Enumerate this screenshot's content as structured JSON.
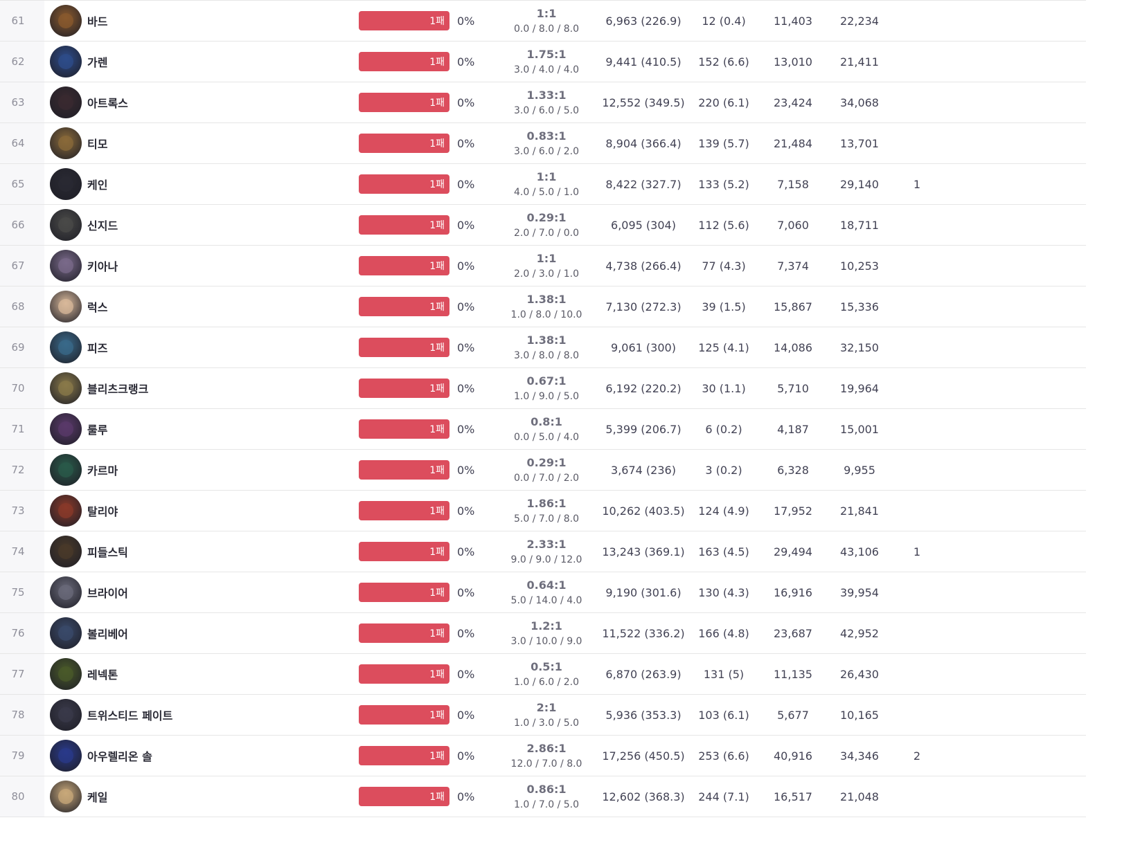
{
  "colors": {
    "loss_bar": "#dc4d5d",
    "rank_bg": "#f7f7f9",
    "divider": "#e6e6e6"
  },
  "rows": [
    {
      "rank": "61",
      "name": "바드",
      "loss": "1패",
      "winrate": "0%",
      "kda_ratio": "1:1",
      "kda": "0.0 / 8.0  / 8.0",
      "damage": "6,963 (226.9)",
      "cs": "12 (0.4)",
      "gold": "11,403",
      "dealt": "22,234",
      "extra": "",
      "avatar_icon": "champion-portrait",
      "avatar_color": "#8a5a2e"
    },
    {
      "rank": "62",
      "name": "가렌",
      "loss": "1패",
      "winrate": "0%",
      "kda_ratio": "1.75:1",
      "kda": "3.0 / 4.0  / 4.0",
      "damage": "9,441 (410.5)",
      "cs": "152 (6.6)",
      "gold": "13,010",
      "dealt": "21,411",
      "extra": "",
      "avatar_icon": "champion-portrait",
      "avatar_color": "#2e4c8a"
    },
    {
      "rank": "63",
      "name": "아트록스",
      "loss": "1패",
      "winrate": "0%",
      "kda_ratio": "1.33:1",
      "kda": "3.0 / 6.0  / 5.0",
      "damage": "12,552 (349.5)",
      "cs": "220 (6.1)",
      "gold": "23,424",
      "dealt": "34,068",
      "extra": "",
      "avatar_icon": "champion-portrait",
      "avatar_color": "#3a2a30"
    },
    {
      "rank": "64",
      "name": "티모",
      "loss": "1패",
      "winrate": "0%",
      "kda_ratio": "0.83:1",
      "kda": "3.0 / 6.0  / 2.0",
      "damage": "8,904 (366.4)",
      "cs": "139 (5.7)",
      "gold": "21,484",
      "dealt": "13,701",
      "extra": "",
      "avatar_icon": "champion-portrait",
      "avatar_color": "#8a6a3a"
    },
    {
      "rank": "65",
      "name": "케인",
      "loss": "1패",
      "winrate": "0%",
      "kda_ratio": "1:1",
      "kda": "4.0 / 5.0  / 1.0",
      "damage": "8,422 (327.7)",
      "cs": "133 (5.2)",
      "gold": "7,158",
      "dealt": "29,140",
      "extra": "1",
      "avatar_icon": "champion-portrait",
      "avatar_color": "#2a2a33"
    },
    {
      "rank": "66",
      "name": "신지드",
      "loss": "1패",
      "winrate": "0%",
      "kda_ratio": "0.29:1",
      "kda": "2.0 / 7.0  / 0.0",
      "damage": "6,095 (304)",
      "cs": "112 (5.6)",
      "gold": "7,060",
      "dealt": "18,711",
      "extra": "",
      "avatar_icon": "champion-portrait",
      "avatar_color": "#4a4a48"
    },
    {
      "rank": "67",
      "name": "키아나",
      "loss": "1패",
      "winrate": "0%",
      "kda_ratio": "1:1",
      "kda": "2.0 / 3.0  / 1.0",
      "damage": "4,738 (266.4)",
      "cs": "77 (4.3)",
      "gold": "7,374",
      "dealt": "10,253",
      "extra": "",
      "avatar_icon": "champion-portrait",
      "avatar_color": "#7a6a8a"
    },
    {
      "rank": "68",
      "name": "럭스",
      "loss": "1패",
      "winrate": "0%",
      "kda_ratio": "1.38:1",
      "kda": "1.0 / 8.0  / 10.0",
      "damage": "7,130 (272.3)",
      "cs": "39 (1.5)",
      "gold": "15,867",
      "dealt": "15,336",
      "extra": "",
      "avatar_icon": "champion-portrait",
      "avatar_color": "#d8b89a"
    },
    {
      "rank": "69",
      "name": "피즈",
      "loss": "1패",
      "winrate": "0%",
      "kda_ratio": "1.38:1",
      "kda": "3.0 / 8.0  / 8.0",
      "damage": "9,061 (300)",
      "cs": "125 (4.1)",
      "gold": "14,086",
      "dealt": "32,150",
      "extra": "",
      "avatar_icon": "champion-portrait",
      "avatar_color": "#3a6a8a"
    },
    {
      "rank": "70",
      "name": "블리츠크랭크",
      "loss": "1패",
      "winrate": "0%",
      "kda_ratio": "0.67:1",
      "kda": "1.0 / 9.0  / 5.0",
      "damage": "6,192 (220.2)",
      "cs": "30 (1.1)",
      "gold": "5,710",
      "dealt": "19,964",
      "extra": "",
      "avatar_icon": "champion-portrait",
      "avatar_color": "#8a7a4a"
    },
    {
      "rank": "71",
      "name": "룰루",
      "loss": "1패",
      "winrate": "0%",
      "kda_ratio": "0.8:1",
      "kda": "0.0 / 5.0  / 4.0",
      "damage": "5,399 (206.7)",
      "cs": "6 (0.2)",
      "gold": "4,187",
      "dealt": "15,001",
      "extra": "",
      "avatar_icon": "champion-portrait",
      "avatar_color": "#5a3a6a"
    },
    {
      "rank": "72",
      "name": "카르마",
      "loss": "1패",
      "winrate": "0%",
      "kda_ratio": "0.29:1",
      "kda": "0.0 / 7.0  / 2.0",
      "damage": "3,674 (236)",
      "cs": "3 (0.2)",
      "gold": "6,328",
      "dealt": "9,955",
      "extra": "",
      "avatar_icon": "champion-portrait",
      "avatar_color": "#2a5a4a"
    },
    {
      "rank": "73",
      "name": "탈리야",
      "loss": "1패",
      "winrate": "0%",
      "kda_ratio": "1.86:1",
      "kda": "5.0 / 7.0  / 8.0",
      "damage": "10,262 (403.5)",
      "cs": "124 (4.9)",
      "gold": "17,952",
      "dealt": "21,841",
      "extra": "",
      "avatar_icon": "champion-portrait",
      "avatar_color": "#8a3a2a"
    },
    {
      "rank": "74",
      "name": "피들스틱",
      "loss": "1패",
      "winrate": "0%",
      "kda_ratio": "2.33:1",
      "kda": "9.0 / 9.0  / 12.0",
      "damage": "13,243 (369.1)",
      "cs": "163 (4.5)",
      "gold": "29,494",
      "dealt": "43,106",
      "extra": "1",
      "avatar_icon": "champion-portrait",
      "avatar_color": "#4a3a2a"
    },
    {
      "rank": "75",
      "name": "브라이어",
      "loss": "1패",
      "winrate": "0%",
      "kda_ratio": "0.64:1",
      "kda": "5.0 / 14.0  / 4.0",
      "damage": "9,190 (301.6)",
      "cs": "130 (4.3)",
      "gold": "16,916",
      "dealt": "39,954",
      "extra": "",
      "avatar_icon": "champion-portrait",
      "avatar_color": "#6a6a7a"
    },
    {
      "rank": "76",
      "name": "볼리베어",
      "loss": "1패",
      "winrate": "0%",
      "kda_ratio": "1.2:1",
      "kda": "3.0 / 10.0  / 9.0",
      "damage": "11,522 (336.2)",
      "cs": "166 (4.8)",
      "gold": "23,687",
      "dealt": "42,952",
      "extra": "",
      "avatar_icon": "champion-portrait",
      "avatar_color": "#3a4a6a"
    },
    {
      "rank": "77",
      "name": "레넥톤",
      "loss": "1패",
      "winrate": "0%",
      "kda_ratio": "0.5:1",
      "kda": "1.0 / 6.0  / 2.0",
      "damage": "6,870 (263.9)",
      "cs": "131 (5)",
      "gold": "11,135",
      "dealt": "26,430",
      "extra": "",
      "avatar_icon": "champion-portrait",
      "avatar_color": "#4a5a2a"
    },
    {
      "rank": "78",
      "name": "트위스티드 페이트",
      "loss": "1패",
      "winrate": "0%",
      "kda_ratio": "2:1",
      "kda": "1.0 / 3.0  / 5.0",
      "damage": "5,936 (353.3)",
      "cs": "103 (6.1)",
      "gold": "5,677",
      "dealt": "10,165",
      "extra": "",
      "avatar_icon": "champion-portrait",
      "avatar_color": "#3a3a4a"
    },
    {
      "rank": "79",
      "name": "아우렐리온 솔",
      "loss": "1패",
      "winrate": "0%",
      "kda_ratio": "2.86:1",
      "kda": "12.0 / 7.0  / 8.0",
      "damage": "17,256 (450.5)",
      "cs": "253 (6.6)",
      "gold": "40,916",
      "dealt": "34,346",
      "extra": "2",
      "avatar_icon": "champion-portrait",
      "avatar_color": "#2a3a8a"
    },
    {
      "rank": "80",
      "name": "케일",
      "loss": "1패",
      "winrate": "0%",
      "kda_ratio": "0.86:1",
      "kda": "1.0 / 7.0  / 5.0",
      "damage": "12,602 (368.3)",
      "cs": "244 (7.1)",
      "gold": "16,517",
      "dealt": "21,048",
      "extra": "",
      "avatar_icon": "champion-portrait",
      "avatar_color": "#c8a87a"
    }
  ]
}
